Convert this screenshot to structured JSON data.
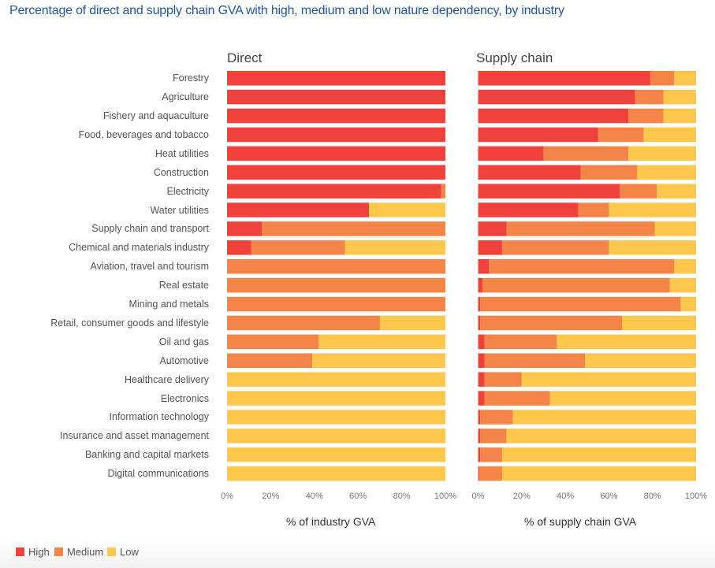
{
  "chart_data": {
    "type": "bar",
    "orientation": "horizontal",
    "stacked": true,
    "title": "Percentage of direct and supply chain GVA with high, medium and low nature dependency, by industry",
    "categories": [
      "Forestry",
      "Agriculture",
      "Fishery and aquaculture",
      "Food, beverages and tobacco",
      "Heat utilities",
      "Construction",
      "Electricity",
      "Water utilities",
      "Supply chain and transport",
      "Chemical and materials industry",
      "Aviation, travel and tourism",
      "Real estate",
      "Mining and metals",
      "Retail, consumer goods and lifestyle",
      "Oil and gas",
      "Automotive",
      "Healthcare delivery",
      "Electronics",
      "Information technology",
      "Insurance and asset management",
      "Banking and capital markets",
      "Digital communications"
    ],
    "legend": {
      "position": "bottom-left",
      "entries": [
        {
          "name": "High",
          "color": "#ef423d"
        },
        {
          "name": "Medium",
          "color": "#f48447"
        },
        {
          "name": "Low",
          "color": "#ffc84d"
        }
      ]
    },
    "panels": [
      {
        "title": "Direct",
        "xlabel": "% of industry GVA",
        "xlim": [
          0,
          100
        ],
        "xticks": [
          "0%",
          "20%",
          "40%",
          "60%",
          "80%",
          "100%"
        ],
        "series": [
          {
            "name": "High",
            "values": [
              100,
              100,
              100,
              100,
              100,
              100,
              98,
              65,
              16,
              11,
              0,
              0,
              0,
              0,
              0,
              0,
              0,
              0,
              0,
              0,
              0,
              0
            ]
          },
          {
            "name": "Medium",
            "values": [
              0,
              0,
              0,
              0,
              0,
              0,
              2,
              0,
              84,
              43,
              100,
              100,
              100,
              70,
              42,
              39,
              0,
              0,
              0,
              0,
              0,
              0
            ]
          },
          {
            "name": "Low",
            "values": [
              0,
              0,
              0,
              0,
              0,
              0,
              0,
              35,
              0,
              46,
              0,
              0,
              0,
              30,
              58,
              61,
              100,
              100,
              100,
              100,
              100,
              100
            ]
          }
        ]
      },
      {
        "title": "Supply chain",
        "xlabel": "% of supply chain GVA",
        "xlim": [
          0,
          100
        ],
        "xticks": [
          "0%",
          "20%",
          "40%",
          "60%",
          "80%",
          "100%"
        ],
        "series": [
          {
            "name": "High",
            "values": [
              79,
              72,
              69,
              55,
              30,
              47,
              65,
              46,
              13,
              11,
              5,
              2,
              1,
              1,
              3,
              3,
              3,
              3,
              1,
              1,
              1,
              0.5
            ]
          },
          {
            "name": "Medium",
            "values": [
              11,
              13,
              16,
              21,
              39,
              26,
              17,
              14,
              68,
              49,
              85,
              86,
              92,
              65,
              33,
              46,
              17,
              30,
              15,
              12,
              10,
              10.5
            ]
          },
          {
            "name": "Low",
            "values": [
              10,
              15,
              15,
              24,
              31,
              27,
              18,
              40,
              19,
              40,
              10,
              12,
              7,
              34,
              64,
              51,
              80,
              67,
              84,
              87,
              89,
              89
            ]
          }
        ]
      }
    ]
  }
}
